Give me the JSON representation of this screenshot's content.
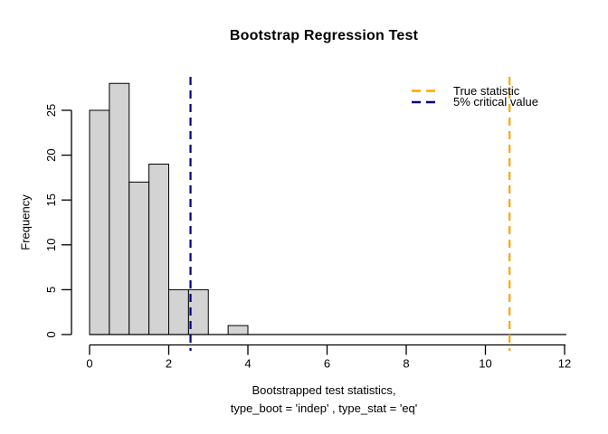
{
  "chart_data": {
    "type": "histogram",
    "title": "Bootstrap Regression Test",
    "xlabel_line1": "Bootstrapped test statistics,",
    "xlabel_line2": "type_boot = 'indep' , type_stat = 'eq'",
    "ylabel": "Frequency",
    "xlim": [
      0,
      12
    ],
    "ylim": [
      0,
      28
    ],
    "x_ticks": [
      0,
      2,
      4,
      6,
      8,
      10,
      12
    ],
    "y_ticks": [
      0,
      5,
      10,
      15,
      20,
      25
    ],
    "grid": false,
    "bin_width": 0.5,
    "bins": [
      {
        "from": 0.0,
        "to": 0.5,
        "count": 25
      },
      {
        "from": 0.5,
        "to": 1.0,
        "count": 28
      },
      {
        "from": 1.0,
        "to": 1.5,
        "count": 17
      },
      {
        "from": 1.5,
        "to": 2.0,
        "count": 19
      },
      {
        "from": 2.0,
        "to": 2.5,
        "count": 5
      },
      {
        "from": 2.5,
        "to": 3.0,
        "count": 5
      },
      {
        "from": 3.0,
        "to": 3.5,
        "count": 0
      },
      {
        "from": 3.5,
        "to": 4.0,
        "count": 1
      }
    ],
    "bar_fill": "#D3D3D3",
    "bar_stroke": "#000000",
    "vlines": [
      {
        "name": "true-statistic-line",
        "x": 10.61,
        "color": "#FFA500",
        "style": "dashed"
      },
      {
        "name": "critical-value-line",
        "x": 2.55,
        "color": "#000080",
        "style": "dashed"
      }
    ],
    "legend": {
      "position": "top-right",
      "items": [
        {
          "label": "True statistic",
          "color": "#FFA500",
          "line_style": "dashed"
        },
        {
          "label": "5% critical value",
          "color": "#000080",
          "line_style": "dashed"
        }
      ]
    }
  }
}
